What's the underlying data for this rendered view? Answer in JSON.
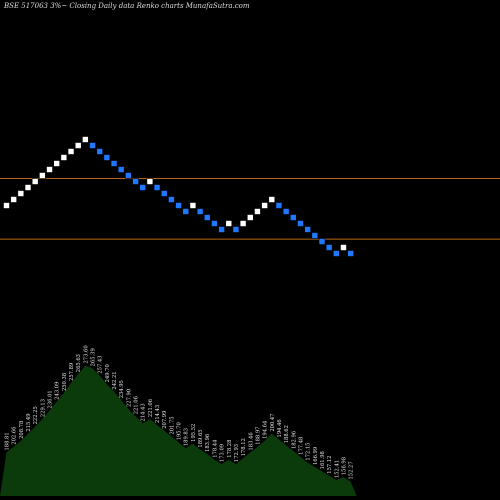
{
  "chart_data": {
    "type": "renko",
    "title": "BSE 517063 3%~   Closing Daily data  Renko  charts MunafaSutra.com",
    "box_size_note": "3%",
    "colors": {
      "up": "#ffffff",
      "down": "#1f78ff",
      "level_line": "#b8660f",
      "volume_fill": "#0b3a0b",
      "background": "#000000"
    },
    "bricks": [
      {
        "dir": "up",
        "y": 0
      },
      {
        "dir": "up",
        "y": 1
      },
      {
        "dir": "up",
        "y": 2
      },
      {
        "dir": "up",
        "y": 3
      },
      {
        "dir": "up",
        "y": 4
      },
      {
        "dir": "up",
        "y": 5
      },
      {
        "dir": "up",
        "y": 6
      },
      {
        "dir": "up",
        "y": 7
      },
      {
        "dir": "up",
        "y": 8
      },
      {
        "dir": "up",
        "y": 9
      },
      {
        "dir": "up",
        "y": 10
      },
      {
        "dir": "up",
        "y": 11
      },
      {
        "dir": "down",
        "y": 10
      },
      {
        "dir": "down",
        "y": 9
      },
      {
        "dir": "down",
        "y": 8
      },
      {
        "dir": "down",
        "y": 7
      },
      {
        "dir": "down",
        "y": 6
      },
      {
        "dir": "down",
        "y": 5
      },
      {
        "dir": "down",
        "y": 4
      },
      {
        "dir": "down",
        "y": 3
      },
      {
        "dir": "up",
        "y": 4
      },
      {
        "dir": "down",
        "y": 3
      },
      {
        "dir": "down",
        "y": 2
      },
      {
        "dir": "down",
        "y": 1
      },
      {
        "dir": "down",
        "y": 0
      },
      {
        "dir": "down",
        "y": -1
      },
      {
        "dir": "up",
        "y": 0
      },
      {
        "dir": "down",
        "y": -1
      },
      {
        "dir": "down",
        "y": -2
      },
      {
        "dir": "down",
        "y": -3
      },
      {
        "dir": "down",
        "y": -4
      },
      {
        "dir": "up",
        "y": -3
      },
      {
        "dir": "down",
        "y": -4
      },
      {
        "dir": "up",
        "y": -3
      },
      {
        "dir": "up",
        "y": -2
      },
      {
        "dir": "up",
        "y": -1
      },
      {
        "dir": "up",
        "y": 0
      },
      {
        "dir": "up",
        "y": 1
      },
      {
        "dir": "down",
        "y": 0
      },
      {
        "dir": "down",
        "y": -1
      },
      {
        "dir": "down",
        "y": -2
      },
      {
        "dir": "down",
        "y": -3
      },
      {
        "dir": "down",
        "y": -4
      },
      {
        "dir": "down",
        "y": -5
      },
      {
        "dir": "down",
        "y": -6
      },
      {
        "dir": "down",
        "y": -7
      },
      {
        "dir": "down",
        "y": -8
      },
      {
        "dir": "up",
        "y": -7
      },
      {
        "dir": "down",
        "y": -8
      }
    ],
    "level_lines_bricks": [
      4.5,
      -5.6
    ],
    "volume_labels": [
      "188.81",
      "202.66",
      "208.78",
      "215.49",
      "222.25",
      "229.13",
      "236.01",
      "243.09",
      "250.38",
      "257.89",
      "265.63",
      "273.60",
      "265.39",
      "257.43",
      "249.70",
      "242.21",
      "234.95",
      "227.90",
      "221.06",
      "214.43",
      "221.06",
      "214.43",
      "207.99",
      "201.75",
      "195.70",
      "189.83",
      "195.52",
      "189.65",
      "183.96",
      "178.44",
      "173.09",
      "178.28",
      "172.93",
      "178.12",
      "183.46",
      "188.97",
      "194.64",
      "200.47",
      "194.46",
      "188.62",
      "182.96",
      "177.48",
      "172.15",
      "166.99",
      "161.98",
      "157.12",
      "152.41",
      "156.98",
      "152.27"
    ],
    "volume_heights": [
      0.3,
      0.34,
      0.38,
      0.43,
      0.48,
      0.53,
      0.59,
      0.65,
      0.71,
      0.78,
      0.84,
      0.9,
      0.88,
      0.83,
      0.77,
      0.72,
      0.66,
      0.6,
      0.55,
      0.5,
      0.53,
      0.49,
      0.45,
      0.41,
      0.37,
      0.33,
      0.36,
      0.32,
      0.29,
      0.25,
      0.22,
      0.25,
      0.22,
      0.26,
      0.3,
      0.34,
      0.38,
      0.43,
      0.39,
      0.35,
      0.31,
      0.27,
      0.23,
      0.2,
      0.17,
      0.14,
      0.11,
      0.13,
      0.1
    ]
  }
}
